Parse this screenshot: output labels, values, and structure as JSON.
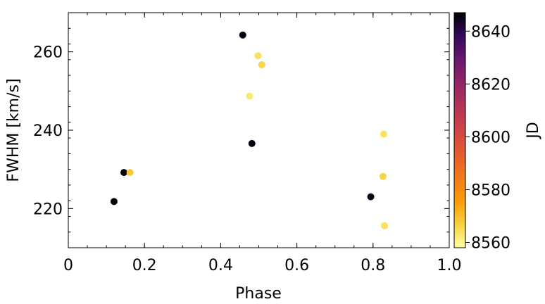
{
  "chart_data": {
    "type": "scatter",
    "xlabel": "Phase",
    "ylabel": "FWHM [km/s]",
    "xlim": [
      0,
      1.0
    ],
    "ylim": [
      210,
      270
    ],
    "xticks": [
      "0",
      "0.2",
      "0.4",
      "0.6",
      "0.8",
      "1.0"
    ],
    "xtick_values": [
      0,
      0.2,
      0.4,
      0.6,
      0.8,
      1.0
    ],
    "yticks": [
      "220",
      "240",
      "260"
    ],
    "ytick_values": [
      220,
      240,
      260
    ],
    "grid": false,
    "colorbar": {
      "label": "JD",
      "colormap": "inferno",
      "range": [
        8558,
        8647
      ],
      "ticks": [
        "8560",
        "8580",
        "8600",
        "8620",
        "8640"
      ],
      "tick_values": [
        8560,
        8580,
        8600,
        8620,
        8640
      ]
    },
    "points": [
      {
        "x": 0.12,
        "y": 221.8,
        "c": 8646
      },
      {
        "x": 0.146,
        "y": 229.2,
        "c": 8646
      },
      {
        "x": 0.162,
        "y": 229.2,
        "c": 8568
      },
      {
        "x": 0.458,
        "y": 264.3,
        "c": 8646
      },
      {
        "x": 0.498,
        "y": 259.0,
        "c": 8564
      },
      {
        "x": 0.508,
        "y": 256.7,
        "c": 8566
      },
      {
        "x": 0.476,
        "y": 248.7,
        "c": 8562
      },
      {
        "x": 0.482,
        "y": 236.6,
        "c": 8646
      },
      {
        "x": 0.794,
        "y": 223.0,
        "c": 8646
      },
      {
        "x": 0.828,
        "y": 239.0,
        "c": 8564
      },
      {
        "x": 0.826,
        "y": 228.2,
        "c": 8566
      },
      {
        "x": 0.83,
        "y": 215.6,
        "c": 8564
      }
    ]
  }
}
